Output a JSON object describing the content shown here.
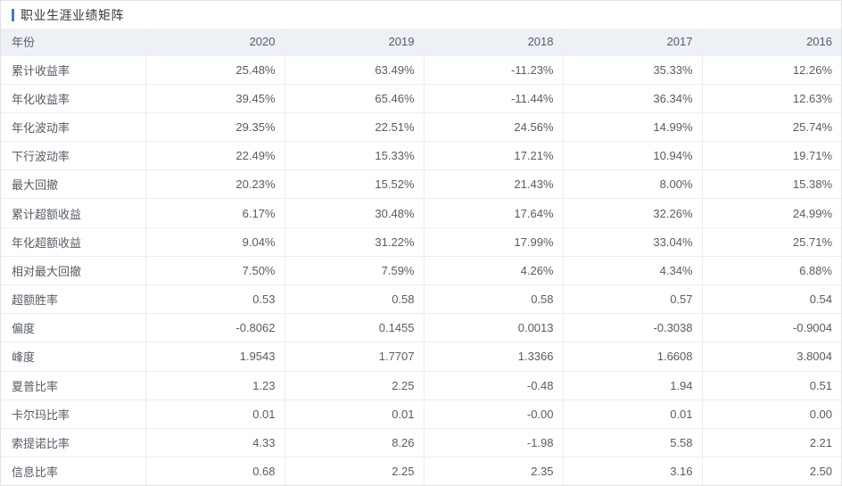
{
  "widget": {
    "title": "职业生涯业绩矩阵",
    "accent_color": "#4678c8",
    "header_bg_color": "#edf0f5",
    "border_color": "#eaedf2",
    "text_color": "#565d66"
  },
  "table": {
    "columns": [
      "年份",
      "2020",
      "2019",
      "2018",
      "2017",
      "2016"
    ],
    "rows": [
      {
        "label": "累计收益率",
        "values": [
          "25.48%",
          "63.49%",
          "-11.23%",
          "35.33%",
          "12.26%"
        ]
      },
      {
        "label": "年化收益率",
        "values": [
          "39.45%",
          "65.46%",
          "-11.44%",
          "36.34%",
          "12.63%"
        ]
      },
      {
        "label": "年化波动率",
        "values": [
          "29.35%",
          "22.51%",
          "24.56%",
          "14.99%",
          "25.74%"
        ]
      },
      {
        "label": "下行波动率",
        "values": [
          "22.49%",
          "15.33%",
          "17.21%",
          "10.94%",
          "19.71%"
        ]
      },
      {
        "label": "最大回撤",
        "values": [
          "20.23%",
          "15.52%",
          "21.43%",
          "8.00%",
          "15.38%"
        ]
      },
      {
        "label": "累计超额收益",
        "values": [
          "6.17%",
          "30.48%",
          "17.64%",
          "32.26%",
          "24.99%"
        ]
      },
      {
        "label": "年化超额收益",
        "values": [
          "9.04%",
          "31.22%",
          "17.99%",
          "33.04%",
          "25.71%"
        ]
      },
      {
        "label": "相对最大回撤",
        "values": [
          "7.50%",
          "7.59%",
          "4.26%",
          "4.34%",
          "6.88%"
        ]
      },
      {
        "label": "超额胜率",
        "values": [
          "0.53",
          "0.58",
          "0.58",
          "0.57",
          "0.54"
        ]
      },
      {
        "label": "偏度",
        "values": [
          "-0.8062",
          "0.1455",
          "0.0013",
          "-0.3038",
          "-0.9004"
        ]
      },
      {
        "label": "峰度",
        "values": [
          "1.9543",
          "1.7707",
          "1.3366",
          "1.6608",
          "3.8004"
        ]
      },
      {
        "label": "夏普比率",
        "values": [
          "1.23",
          "2.25",
          "-0.48",
          "1.94",
          "0.51"
        ]
      },
      {
        "label": "卡尔玛比率",
        "values": [
          "0.01",
          "0.01",
          "-0.00",
          "0.01",
          "0.00"
        ]
      },
      {
        "label": "索提诺比率",
        "values": [
          "4.33",
          "8.26",
          "-1.98",
          "5.58",
          "2.21"
        ]
      },
      {
        "label": "信息比率",
        "values": [
          "0.68",
          "2.25",
          "2.35",
          "3.16",
          "2.50"
        ]
      }
    ]
  }
}
